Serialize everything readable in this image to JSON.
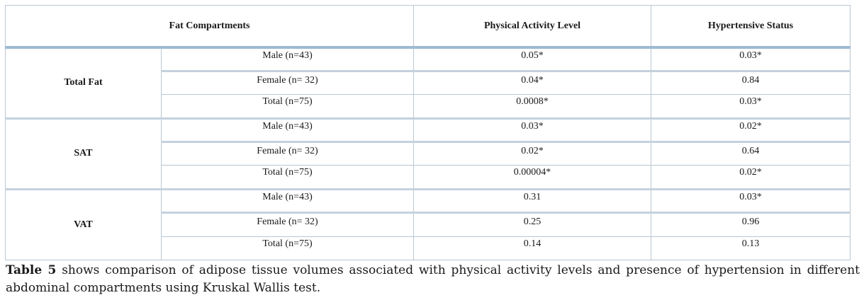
{
  "table": {
    "headers": [
      "Fat Compartments",
      "Physical Activity Level",
      "Hypertensive Status"
    ],
    "groups": [
      {
        "name": "Total Fat",
        "rows": [
          {
            "label": "Male (n=43)",
            "activity": "0.05*",
            "hypertensive": "0.03*"
          },
          {
            "label": "Female (n= 32)",
            "activity": "0.04*",
            "hypertensive": "0.84"
          },
          {
            "label": "Total (n=75)",
            "activity": "0.0008*",
            "hypertensive": "0.03*"
          }
        ]
      },
      {
        "name": "SAT",
        "rows": [
          {
            "label": "Male (n=43)",
            "activity": "0.03*",
            "hypertensive": "0.02*"
          },
          {
            "label": "Female (n= 32)",
            "activity": "0.02*",
            "hypertensive": "0.64"
          },
          {
            "label": "Total (n=75)",
            "activity": "0.00004*",
            "hypertensive": "0.02*"
          }
        ]
      },
      {
        "name": "VAT",
        "rows": [
          {
            "label": "Male (n=43)",
            "activity": "0.31",
            "hypertensive": "0.03*"
          },
          {
            "label": "Female (n= 32)",
            "activity": "0.25",
            "hypertensive": "0.96"
          },
          {
            "label": "Total (n=75)",
            "activity": "0.14",
            "hypertensive": "0.13"
          }
        ]
      }
    ]
  },
  "caption": {
    "label": "Table 5",
    "text": " shows comparison of adipose tissue volumes associated with physical activity levels and presence of hypertension in different abdominal compartments using Kruskal Wallis test."
  }
}
